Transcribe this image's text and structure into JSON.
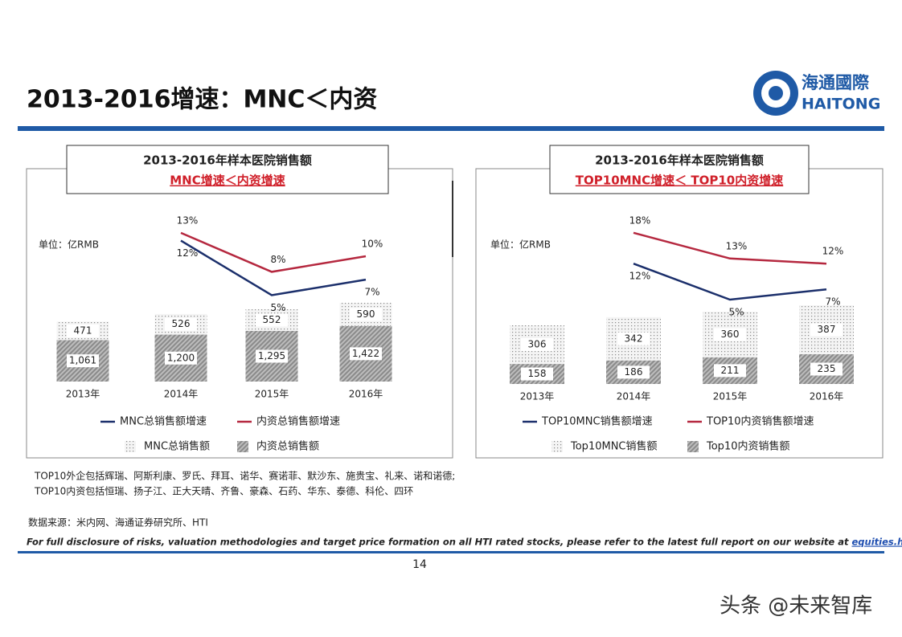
{
  "header": {
    "title": "2013-2016增速：MNC＜内资"
  },
  "logo": {
    "cn": "海通國際",
    "en": "HAITONG"
  },
  "chart_data": [
    {
      "type": "combo",
      "title": "2013-2016年样本医院销售额",
      "subtitle": "MNC增速＜内资增速",
      "unit": "单位：亿RMB",
      "categories": [
        "2013年",
        "2014年",
        "2015年",
        "2016年"
      ],
      "series": [
        {
          "name": "MNC总销售额增速",
          "kind": "line",
          "axis": "y2",
          "color": "#1b2f6b",
          "values": [
            null,
            12,
            5,
            7
          ],
          "value_labels": [
            null,
            "12%",
            "5%",
            "7%"
          ]
        },
        {
          "name": "内资总销售额增速",
          "kind": "line",
          "axis": "y2",
          "color": "#b5283f",
          "values": [
            null,
            13,
            8,
            10
          ],
          "value_labels": [
            null,
            "13%",
            "8%",
            "10%"
          ]
        },
        {
          "name": "MNC总销售额",
          "kind": "bar",
          "pattern": "dots",
          "color": "#9a9a9a",
          "values": [
            471,
            526,
            552,
            590
          ]
        },
        {
          "name": "内资总销售额",
          "kind": "bar",
          "pattern": "hatch",
          "color": "#9a9a9a",
          "values": [
            1061,
            1200,
            1295,
            1422
          ],
          "value_labels": [
            "1,061",
            "1,200",
            "1,295",
            "1,422"
          ]
        }
      ]
    },
    {
      "type": "combo",
      "title": "2013-2016年样本医院销售额",
      "subtitle": "TOP10MNC增速＜ TOP10内资增速",
      "unit": "单位：亿RMB",
      "categories": [
        "2013年",
        "2014年",
        "2015年",
        "2016年"
      ],
      "series": [
        {
          "name": "TOP10MNC销售额增速",
          "kind": "line",
          "axis": "y2",
          "color": "#1b2f6b",
          "values": [
            null,
            12,
            5,
            7
          ],
          "value_labels": [
            null,
            "12%",
            "5%",
            "7%"
          ]
        },
        {
          "name": "TOP10内资销售额增速",
          "kind": "line",
          "axis": "y2",
          "color": "#b5283f",
          "values": [
            null,
            18,
            13,
            12
          ],
          "value_labels": [
            null,
            "18%",
            "13%",
            "12%"
          ]
        },
        {
          "name": "Top10MNC销售额",
          "kind": "bar",
          "pattern": "dots",
          "color": "#9a9a9a",
          "values": [
            306,
            342,
            360,
            387
          ]
        },
        {
          "name": "Top10内资销售额",
          "kind": "bar",
          "pattern": "hatch",
          "color": "#9a9a9a",
          "values": [
            158,
            186,
            211,
            235
          ]
        }
      ]
    }
  ],
  "notes": [
    "TOP10外企包括辉瑞、阿斯利康、罗氏、拜耳、诺华、赛诺菲、默沙东、施贵宝、礼来、诺和诺德;",
    "TOP10内资包括恒瑞、扬子江、正大天晴、齐鲁、豪森、石药、华东、泰德、科伦、四环"
  ],
  "source": "数据来源：米内网、海通证券研究所、HTI",
  "disclaimer": {
    "text": "For full disclosure of risks, valuation methodologies and target price formation on all HTI rated stocks, please refer to the latest full report on our website at",
    "link": "equities.htisec.com"
  },
  "page_number": 14,
  "watermark": "头条 @未来智库"
}
